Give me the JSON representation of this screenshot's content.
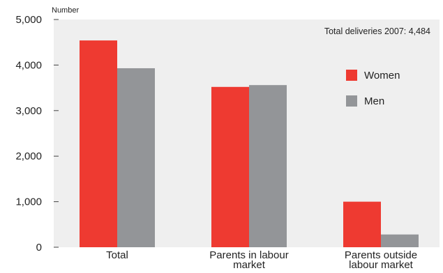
{
  "chart_data": {
    "type": "bar",
    "ylabel": "Number",
    "annotation": "Total deliveries 2007: 4,484",
    "categories": [
      [
        "Total"
      ],
      [
        "Parents in labour",
        "market"
      ],
      [
        "Parents outside",
        "labour market"
      ]
    ],
    "series": [
      {
        "name": "Women",
        "color": "#ee3a31",
        "values": [
          4540,
          3520,
          1000
        ]
      },
      {
        "name": "Men",
        "color": "#939598",
        "values": [
          3930,
          3560,
          280
        ]
      }
    ],
    "ylim": [
      0,
      5000
    ],
    "yticks": [
      0,
      1000,
      2000,
      3000,
      4000,
      5000
    ],
    "ytick_labels": [
      "0",
      "1,000",
      "2,000",
      "3,000",
      "4,000",
      "5,000"
    ],
    "grid": false,
    "legend_position": "right",
    "plot_background": "#efefef"
  }
}
